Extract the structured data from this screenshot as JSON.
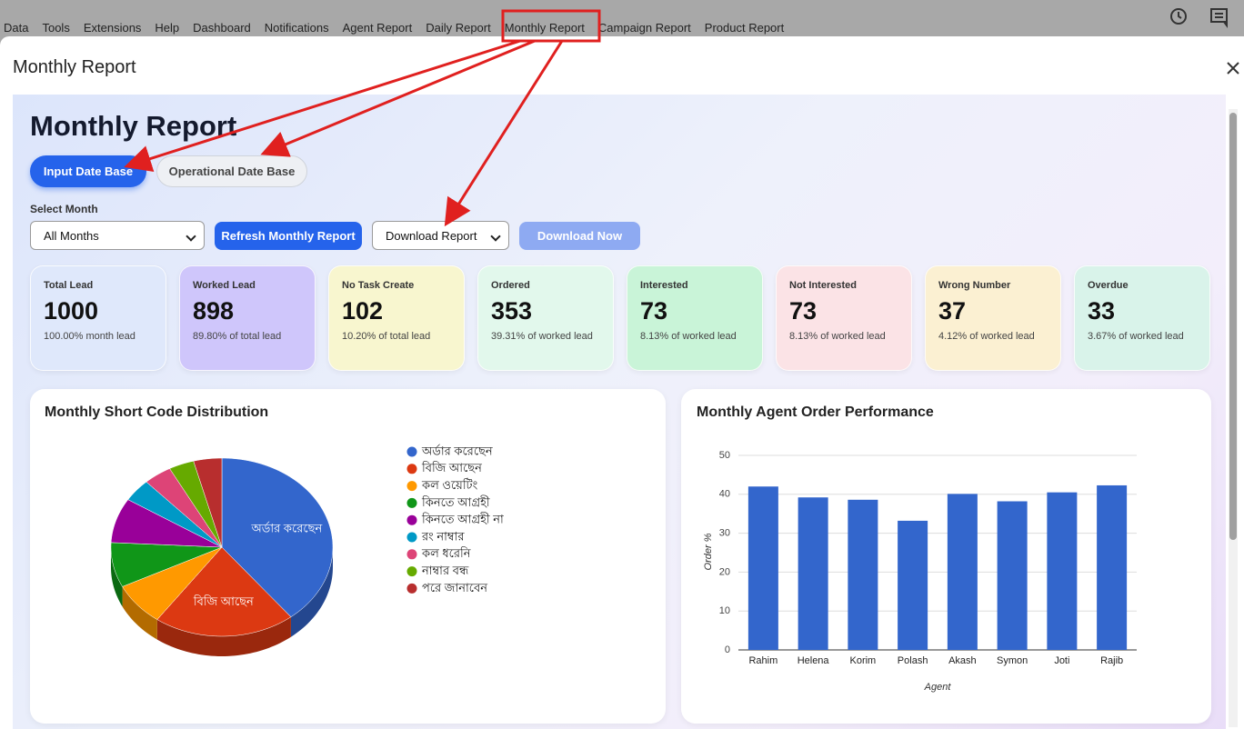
{
  "menu": [
    "Data",
    "Tools",
    "Extensions",
    "Help",
    "Dashboard",
    "Notifications",
    "Agent Report",
    "Daily Report",
    "Monthly Report",
    "Campaign Report",
    "Product Report"
  ],
  "dialog_title": "Monthly Report",
  "heading": "Monthly Report",
  "tabs": [
    "Input Date Base",
    "Operational Date Base"
  ],
  "select_label": "Select Month",
  "month_select": "All Months",
  "refresh_button": "Refresh Monthly Report",
  "download_select": "Download Report",
  "download_button": "Download Now",
  "cards": [
    {
      "label": "Total Lead",
      "value": 1000,
      "note": "100.00% month lead"
    },
    {
      "label": "Worked Lead",
      "value": 898,
      "note": "89.80% of total lead"
    },
    {
      "label": "No Task Create",
      "value": 102,
      "note": "10.20% of total lead"
    },
    {
      "label": "Ordered",
      "value": 353,
      "note": "39.31% of worked lead"
    },
    {
      "label": "Interested",
      "value": 73,
      "note": "8.13% of worked lead"
    },
    {
      "label": "Not Interested",
      "value": 73,
      "note": "8.13% of worked lead"
    },
    {
      "label": "Wrong Number",
      "value": 37,
      "note": "4.12% of worked lead"
    },
    {
      "label": "Overdue",
      "value": 33,
      "note": "3.67% of worked lead"
    }
  ],
  "pie_chart": {
    "type": "pie",
    "title": "Monthly Short Code Distribution",
    "categories": [
      "অর্ডার করেছেন",
      "বিজি আছেন",
      "কল ওয়েটিং",
      "কিনতে আগ্রহী",
      "কিনতে আগ্রহী না",
      "রং নাম্বার",
      "কল ধরেনি",
      "নাম্বার বন্ধ",
      "পরে জানাবেন"
    ],
    "values": [
      353,
      185,
      70,
      73,
      73,
      37,
      37,
      33,
      37
    ],
    "colors": [
      "#3366cc",
      "#dc3912",
      "#ff9900",
      "#109618",
      "#990099",
      "#0099c6",
      "#dd4477",
      "#66aa00",
      "#b82e2e"
    ]
  },
  "bar_chart": {
    "type": "bar",
    "title": "Monthly Agent Order Performance",
    "categories": [
      "Rahim",
      "Helena",
      "Korim",
      "Polash",
      "Akash",
      "Symon",
      "Joti",
      "Rajib"
    ],
    "values": [
      42,
      39.2,
      38.6,
      33.2,
      40.1,
      38.2,
      40.5,
      42.3
    ],
    "color": "#3366cc",
    "ylim": [
      0,
      50
    ],
    "yticks": [
      0,
      10,
      20,
      30,
      40,
      50
    ],
    "ylabel": "Order %",
    "xlabel": "Agent",
    "grid": true
  }
}
